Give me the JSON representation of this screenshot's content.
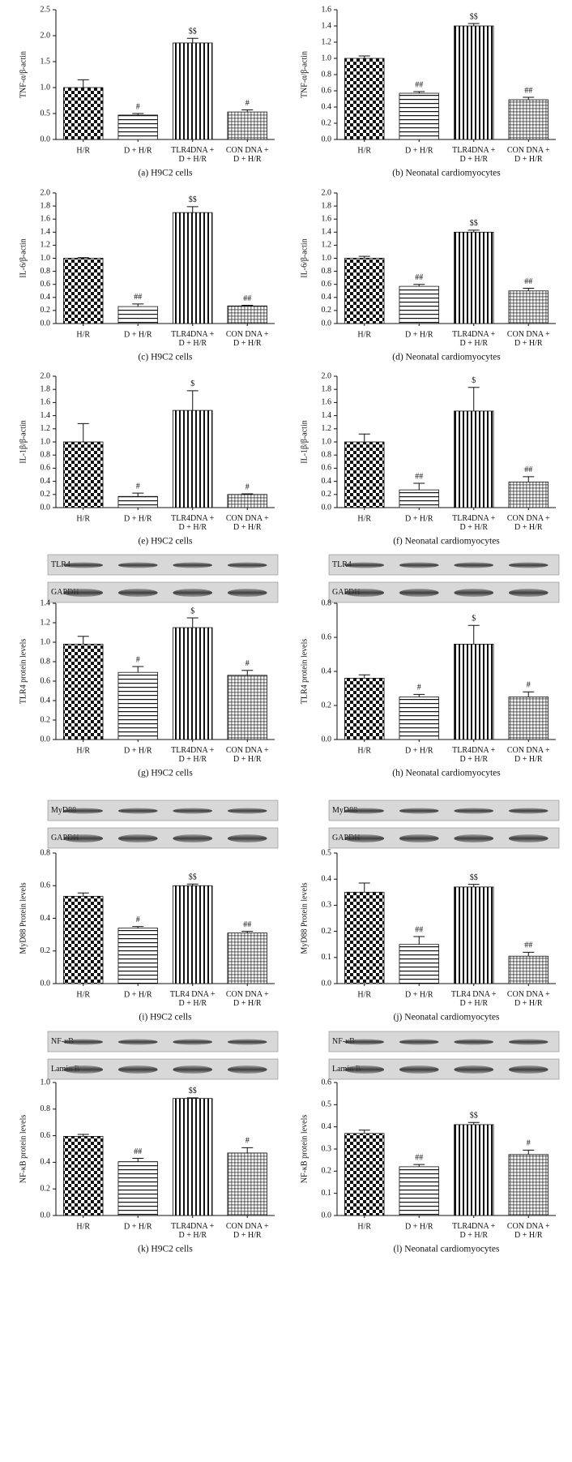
{
  "chart_data": [
    {
      "type": "bar",
      "caption": "(a) H9C2 cells",
      "ylabel": "TNF-α/β-actin",
      "categories": [
        "H/R",
        "D + H/R",
        "TLR4DNA +\nD + H/R",
        "CON DNA +\nD + H/R"
      ],
      "values": [
        1.0,
        0.47,
        1.86,
        0.53
      ],
      "errors": [
        0.15,
        0.03,
        0.09,
        0.04
      ],
      "annotations": [
        null,
        "#",
        "$$",
        "#"
      ],
      "ylim": [
        0,
        2.5
      ],
      "yticks": [
        {
          "value": 0,
          "label": "0.0"
        },
        0.5,
        {
          "value": 1,
          "label": "1.0"
        },
        1.5,
        {
          "value": 2,
          "label": "2.0"
        },
        2.5
      ]
    },
    {
      "type": "bar",
      "caption": "(b) Neonatal cardiomyocytes",
      "ylabel": "TNF-α/β-actin",
      "categories": [
        "H/R",
        "D + H/R",
        "TLR4DNA +\nD + H/R",
        "CON DNA +\nD + H/R"
      ],
      "values": [
        1.0,
        0.57,
        1.4,
        0.49
      ],
      "errors": [
        0.03,
        0.02,
        0.03,
        0.03
      ],
      "annotations": [
        null,
        "##",
        "$$",
        "##"
      ],
      "ylim": [
        0,
        1.6
      ],
      "yticks": [
        {
          "value": 0,
          "label": "0.0"
        },
        0.2,
        0.4,
        0.6,
        0.8,
        {
          "value": 1,
          "label": "1.0"
        },
        1.2,
        1.4,
        1.6
      ]
    },
    {
      "type": "bar",
      "caption": "(c) H9C2 cells",
      "ylabel": "IL-6/β-actin",
      "categories": [
        "H/R",
        "D + H/R",
        "TLR4DNA +\nD + H/R",
        "CON DNA +\nD + H/R"
      ],
      "values": [
        1.0,
        0.26,
        1.7,
        0.27
      ],
      "errors": [
        0.01,
        0.04,
        0.09,
        0.01
      ],
      "annotations": [
        null,
        "##",
        "$$",
        "##"
      ],
      "ylim": [
        0,
        2
      ],
      "yticks": [
        {
          "value": 0,
          "label": "0.0"
        },
        0.2,
        0.4,
        0.6,
        0.8,
        {
          "value": 1,
          "label": "1.0"
        },
        1.2,
        1.4,
        1.6,
        1.8,
        {
          "value": 2,
          "label": "2.0"
        }
      ]
    },
    {
      "type": "bar",
      "caption": "(d) Neonatal cardiomyocytes",
      "ylabel": "IL-6/β-actin",
      "categories": [
        "H/R",
        "D + H/R",
        "TLR4DNA +\nD + H/R",
        "CON DNA +\nD + H/R"
      ],
      "values": [
        1.0,
        0.57,
        1.4,
        0.5
      ],
      "errors": [
        0.03,
        0.03,
        0.03,
        0.04
      ],
      "annotations": [
        null,
        "##",
        "$$",
        "##"
      ],
      "ylim": [
        0,
        2
      ],
      "yticks": [
        {
          "value": 0,
          "label": "0.0"
        },
        0.2,
        0.4,
        0.6,
        0.8,
        {
          "value": 1,
          "label": "1.0"
        },
        1.2,
        1.4,
        1.6,
        1.8,
        {
          "value": 2,
          "label": "2.0"
        }
      ]
    },
    {
      "type": "bar",
      "caption": "(e) H9C2 cells",
      "ylabel": "IL-1β/β-actin",
      "categories": [
        "H/R",
        "D + H/R",
        "TLR4DNA +\nD + H/R",
        "CON DNA +\nD + H/R"
      ],
      "values": [
        1.0,
        0.17,
        1.48,
        0.2
      ],
      "errors": [
        0.28,
        0.05,
        0.3,
        0.01
      ],
      "annotations": [
        null,
        "#",
        "$",
        "#"
      ],
      "ylim": [
        0,
        2
      ],
      "yticks": [
        {
          "value": 0,
          "label": "0.0"
        },
        0.2,
        0.4,
        0.6,
        0.8,
        {
          "value": 1,
          "label": "1.0"
        },
        1.2,
        1.4,
        1.6,
        1.8,
        {
          "value": 2,
          "label": "2.0"
        }
      ]
    },
    {
      "type": "bar",
      "caption": "(f) Neonatal cardiomyocytes",
      "ylabel": "IL-1β/β-actin",
      "categories": [
        "H/R",
        "D + H/R",
        "TLR4DNA +\nD + H/R",
        "CON DNA +\nD + H/R"
      ],
      "values": [
        1.0,
        0.27,
        1.47,
        0.39
      ],
      "errors": [
        0.12,
        0.1,
        0.36,
        0.08
      ],
      "annotations": [
        null,
        "##",
        "$",
        "##"
      ],
      "ylim": [
        0,
        2
      ],
      "yticks": [
        {
          "value": 0,
          "label": "0.0"
        },
        0.2,
        0.4,
        0.6,
        0.8,
        {
          "value": 1,
          "label": "1.0"
        },
        1.2,
        1.4,
        1.6,
        1.8,
        {
          "value": 2,
          "label": "2.0"
        }
      ]
    },
    {
      "type": "bar",
      "caption": "(g) H9C2 cells",
      "ylabel": "TLR4 protein levels",
      "blots": [
        "TLR4",
        "GAPDH"
      ],
      "categories": [
        "H/R",
        "D + H/R",
        "TLR4DNA +\nD + H/R",
        "CON DNA +\nD + H/R"
      ],
      "values": [
        0.98,
        0.69,
        1.15,
        0.66
      ],
      "errors": [
        0.08,
        0.06,
        0.1,
        0.05
      ],
      "annotations": [
        null,
        "#",
        "$",
        "#"
      ],
      "ylim": [
        0,
        1.4
      ],
      "yticks": [
        {
          "value": 0,
          "label": "0.0"
        },
        0.2,
        0.4,
        0.6,
        0.8,
        {
          "value": 1,
          "label": "1.0"
        },
        1.2,
        1.4
      ]
    },
    {
      "type": "bar",
      "caption": "(h) Neonatal cardiomyocytes",
      "ylabel": "TLR4 protein levels",
      "blots": [
        "TLR4",
        "GAPDH"
      ],
      "categories": [
        "H/R",
        "D + H/R",
        "TLR4DNA +\nD + H/R",
        "CON DNA +\nD + H/R"
      ],
      "values": [
        0.36,
        0.25,
        0.56,
        0.25
      ],
      "errors": [
        0.02,
        0.015,
        0.11,
        0.03
      ],
      "annotations": [
        null,
        "#",
        "$",
        "#"
      ],
      "ylim": [
        0,
        0.8
      ],
      "yticks": [
        {
          "value": 0,
          "label": "0.0"
        },
        0.2,
        0.4,
        0.6,
        0.8
      ]
    },
    {
      "type": "bar",
      "caption": "(i) H9C2 cells",
      "ylabel": "MyD88 Protein levels",
      "blots": [
        "MyD88",
        "GAPDH"
      ],
      "categories": [
        "H/R",
        "D + H/R",
        "TLR4 DNA +\nD + H/R",
        "CON DNA +\nD + H/R"
      ],
      "values": [
        0.535,
        0.34,
        0.6,
        0.31
      ],
      "errors": [
        0.02,
        0.01,
        0.01,
        0.01
      ],
      "annotations": [
        null,
        "#",
        "$$",
        "##"
      ],
      "ylim": [
        0,
        0.8
      ],
      "yticks": [
        {
          "value": 0,
          "label": "0.0"
        },
        0.2,
        0.4,
        0.6,
        0.8
      ]
    },
    {
      "type": "bar",
      "caption": "(j) Neonatal cardiomyocytes",
      "ylabel": "MyD88 Protein levels",
      "blots": [
        "MyD88",
        "GAPDH"
      ],
      "categories": [
        "H/R",
        "D + H/R",
        "TLR4 DNA +\nD + H/R",
        "CON DNA +\nD + H/R"
      ],
      "values": [
        0.35,
        0.15,
        0.37,
        0.105
      ],
      "errors": [
        0.035,
        0.03,
        0.01,
        0.015
      ],
      "annotations": [
        null,
        "##",
        "$$",
        "##"
      ],
      "ylim": [
        0,
        0.5
      ],
      "yticks": [
        {
          "value": 0,
          "label": "0.0"
        },
        0.1,
        0.2,
        0.3,
        0.4,
        0.5
      ]
    },
    {
      "type": "bar",
      "caption": "(k) H9C2 cells",
      "ylabel": "NF-κB protein levels",
      "blots": [
        "NF-κB",
        "Lamin B"
      ],
      "categories": [
        "H/R",
        "D + H/R",
        "TLR4DNA +\nD + H/R",
        "CON DNA +\nD + H/R"
      ],
      "values": [
        0.595,
        0.405,
        0.88,
        0.47
      ],
      "errors": [
        0.015,
        0.025,
        0.005,
        0.04
      ],
      "annotations": [
        null,
        "##",
        "$$",
        "#"
      ],
      "ylim": [
        0,
        1
      ],
      "yticks": [
        {
          "value": 0,
          "label": "0.0"
        },
        0.2,
        0.4,
        0.6,
        0.8,
        {
          "value": 1,
          "label": "1.0"
        }
      ]
    },
    {
      "type": "bar",
      "caption": "(l) Neonatal cardiomyocytes",
      "ylabel": "NF-κB protein levels",
      "blots": [
        "NF-κB",
        "Lamin B"
      ],
      "categories": [
        "H/R",
        "D + H/R",
        "TLR4DNA +\nD + H/R",
        "CON DNA +\nD + H/R"
      ],
      "values": [
        0.37,
        0.22,
        0.41,
        0.275
      ],
      "errors": [
        0.015,
        0.01,
        0.01,
        0.02
      ],
      "annotations": [
        null,
        "##",
        "$$",
        "#"
      ],
      "ylim": [
        0,
        0.6
      ],
      "yticks": [
        {
          "value": 0,
          "label": "0.0"
        },
        0.1,
        0.2,
        0.3,
        0.4,
        0.5,
        0.6
      ]
    }
  ]
}
